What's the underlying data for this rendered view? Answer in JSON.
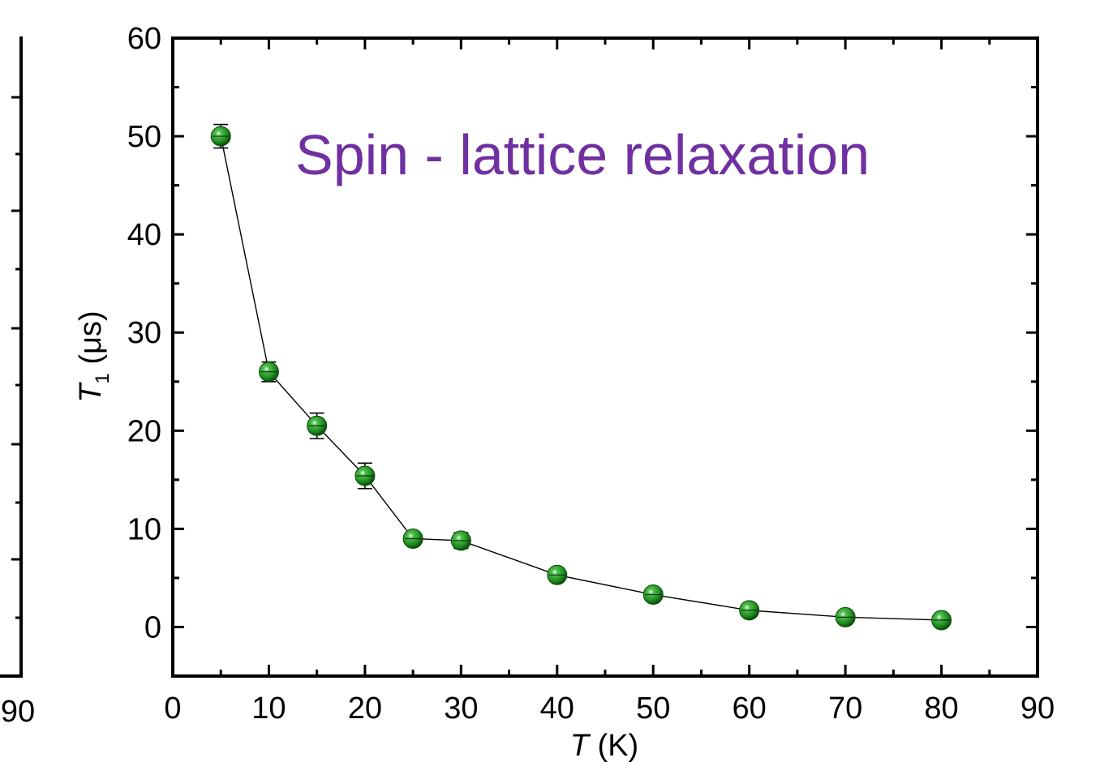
{
  "chart_data": {
    "type": "scatter",
    "title": "",
    "xlabel": {
      "symbol": "T",
      "unit": " (K)"
    },
    "ylabel": {
      "symbol": "T",
      "subscript": "1",
      "unit": " (μs)"
    },
    "xlim": [
      0,
      90
    ],
    "ylim": [
      -5,
      60
    ],
    "xticks": [
      0,
      10,
      20,
      30,
      40,
      50,
      60,
      70,
      80,
      90
    ],
    "yticks": [
      0,
      10,
      20,
      30,
      40,
      50,
      60
    ],
    "grid": false,
    "connect_points": true,
    "annotation": "Spin - lattice relaxation",
    "annotation_color": "#7030a0",
    "marker_color": "#1e8c1e",
    "series": [
      {
        "x": [
          5,
          10,
          15,
          20,
          25,
          30,
          40,
          50,
          60,
          70,
          80
        ],
        "y": [
          50,
          26,
          20.5,
          15.4,
          9,
          8.8,
          5.3,
          3.3,
          1.7,
          1.0,
          0.7
        ],
        "yerr": [
          1.2,
          1.0,
          1.3,
          1.3,
          0.6,
          0.8,
          0.6,
          0.5,
          0.4,
          0.3,
          0.3
        ]
      }
    ],
    "left_panel_partial": {
      "xtick_label": "90"
    }
  }
}
